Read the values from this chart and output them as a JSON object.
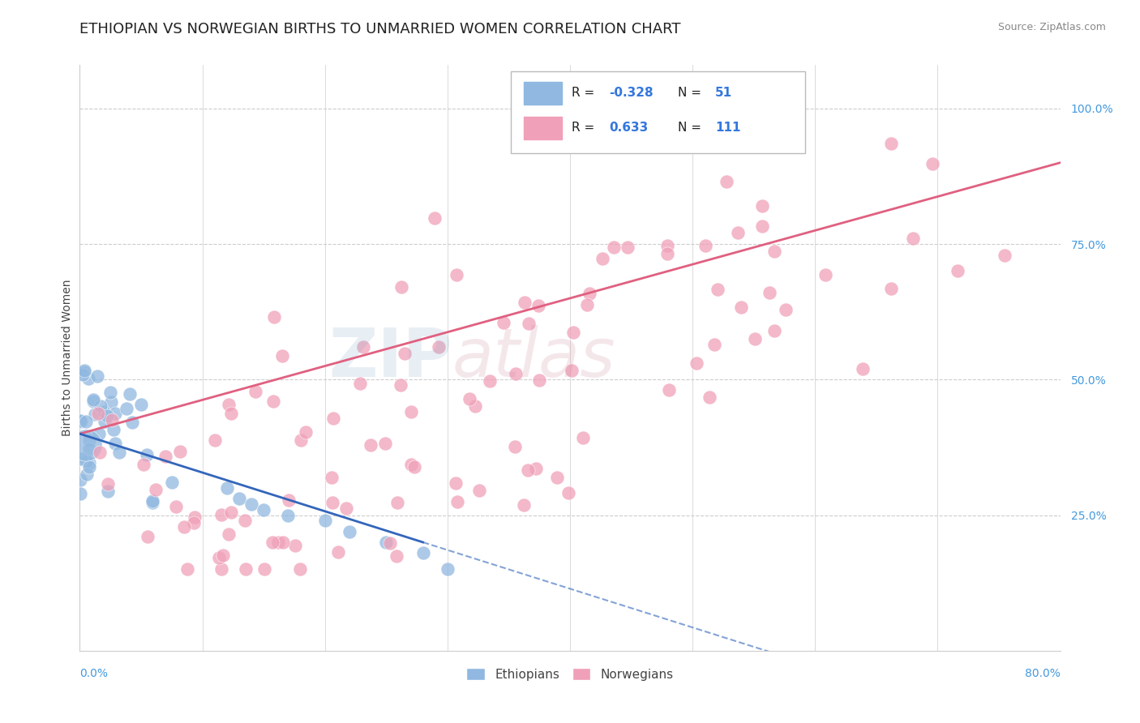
{
  "title": "ETHIOPIAN VS NORWEGIAN BIRTHS TO UNMARRIED WOMEN CORRELATION CHART",
  "source": "Source: ZipAtlas.com",
  "ylabel": "Births to Unmarried Women",
  "xlim": [
    0.0,
    0.8
  ],
  "ylim": [
    0.0,
    1.08
  ],
  "ethiopian_color": "#90b8e0",
  "norwegian_color": "#f0a0b8",
  "ethiopian_line_color": "#3366bb",
  "norwegian_line_color": "#e06080",
  "watermark_zip_color": "#88aacc",
  "watermark_atlas_color": "#cc8899",
  "title_fontsize": 13,
  "tick_fontsize": 10,
  "source_fontsize": 9
}
